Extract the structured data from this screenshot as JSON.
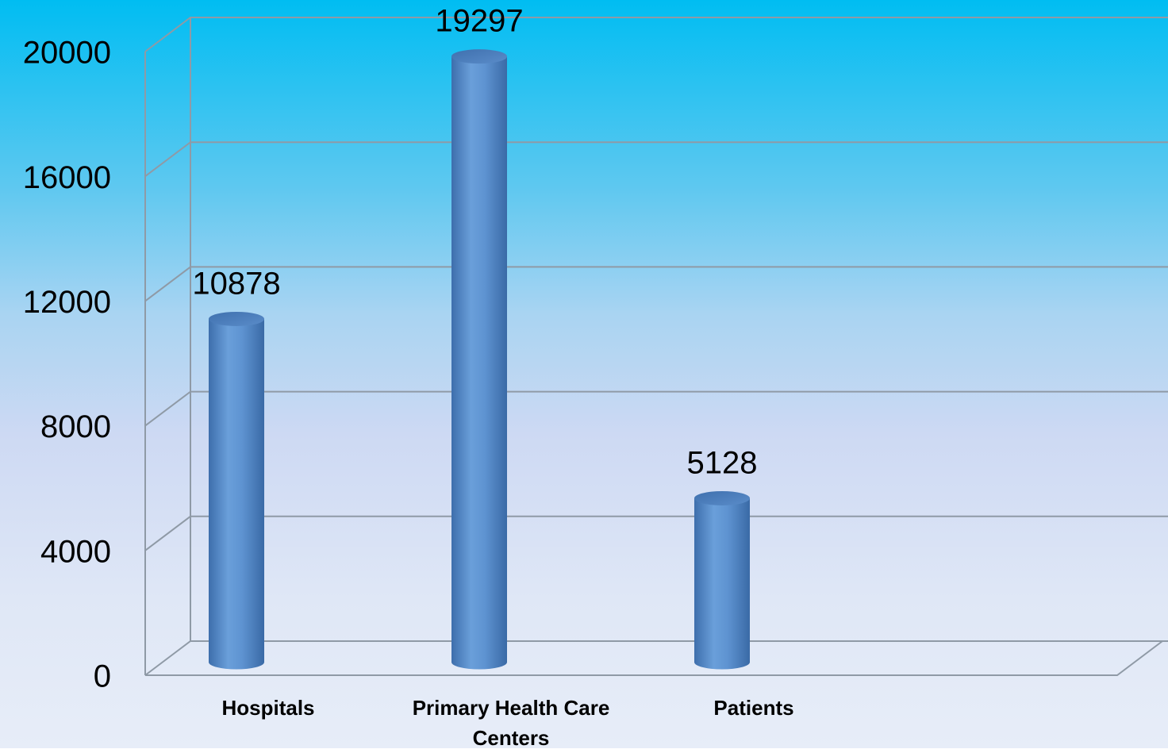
{
  "chart_data": {
    "type": "bar",
    "categories": [
      "Hospitals",
      "Primary Health Care Centers",
      "Patients"
    ],
    "values": [
      10878,
      19297,
      5128
    ],
    "color": "#5b8fcf",
    "ylim": [
      0,
      20000
    ],
    "yticks": [
      0,
      4000,
      8000,
      12000,
      16000,
      20000
    ],
    "grid": true
  }
}
